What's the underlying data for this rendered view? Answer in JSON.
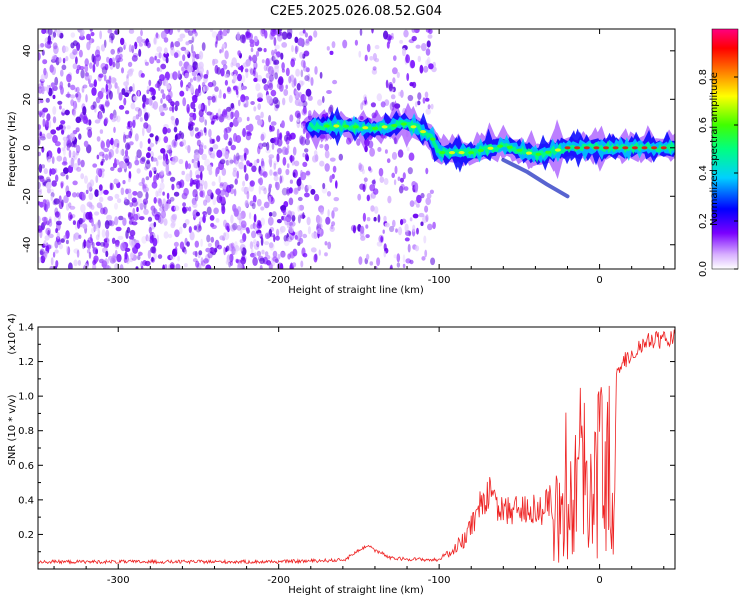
{
  "figure": {
    "title": "C2E5.2025.026.08.52.G04"
  },
  "chart_data": [
    {
      "type": "heatmap",
      "xlabel": "Height of straight line (km)",
      "ylabel": "Frequency (Hz)",
      "xlim": [
        -350,
        47
      ],
      "ylim": [
        -50,
        49
      ],
      "xticks": [
        -300,
        -200,
        -100,
        0
      ],
      "yticks": [
        -40,
        -20,
        0,
        20,
        40
      ],
      "colorbar": {
        "label": "Normalized spectral amplitude",
        "range": [
          0,
          1
        ],
        "ticks": [
          0.0,
          0.2,
          0.4,
          0.6,
          0.8
        ],
        "colormap": [
          "#ffffff",
          "#c080ff",
          "#6a00f0",
          "#0000ff",
          "#00c8ff",
          "#00ff90",
          "#40ff00",
          "#ffff00",
          "#ff8000",
          "#ff0000",
          "#ff0080"
        ]
      },
      "noise_region_km": [
        -350,
        -103
      ],
      "signal_track": [
        {
          "x": -180,
          "y": 9
        },
        {
          "x": -160,
          "y": 9
        },
        {
          "x": -140,
          "y": 8
        },
        {
          "x": -120,
          "y": 10
        },
        {
          "x": -105,
          "y": 5
        },
        {
          "x": -100,
          "y": -2
        },
        {
          "x": -80,
          "y": -2
        },
        {
          "x": -60,
          "y": 1
        },
        {
          "x": -40,
          "y": -3
        },
        {
          "x": -20,
          "y": 0
        },
        {
          "x": 0,
          "y": 0
        },
        {
          "x": 20,
          "y": 0
        },
        {
          "x": 47,
          "y": 0
        }
      ],
      "branch_track": [
        {
          "x": -60,
          "y": -5
        },
        {
          "x": -45,
          "y": -10
        },
        {
          "x": -33,
          "y": -15
        },
        {
          "x": -20,
          "y": -20
        }
      ]
    },
    {
      "type": "line",
      "xlabel": "Height of straight line (km)",
      "ylabel": "SNR (10 * v/v)",
      "multiplier": "(x10^4)",
      "xlim": [
        -350,
        47
      ],
      "ylim": [
        0,
        1.4
      ],
      "xticks": [
        -300,
        -200,
        -100,
        0
      ],
      "yticks": [
        0.2,
        0.4,
        0.6,
        0.8,
        1.0,
        1.2,
        1.4
      ],
      "series": [
        {
          "color": "#ee2222",
          "envelope": [
            {
              "x": -350,
              "y": 0.04
            },
            {
              "x": -200,
              "y": 0.04
            },
            {
              "x": -160,
              "y": 0.05
            },
            {
              "x": -145,
              "y": 0.14
            },
            {
              "x": -130,
              "y": 0.06
            },
            {
              "x": -100,
              "y": 0.05
            },
            {
              "x": -85,
              "y": 0.2
            },
            {
              "x": -70,
              "y": 0.55
            },
            {
              "x": -60,
              "y": 0.4
            },
            {
              "x": -45,
              "y": 0.45
            },
            {
              "x": -35,
              "y": 0.42
            },
            {
              "x": -25,
              "y": 0.6
            },
            {
              "x": -15,
              "y": 0.9
            },
            {
              "x": 0,
              "y": 1.05
            },
            {
              "x": 15,
              "y": 1.25
            },
            {
              "x": 30,
              "y": 1.37
            },
            {
              "x": 47,
              "y": 1.39
            }
          ]
        }
      ]
    }
  ]
}
